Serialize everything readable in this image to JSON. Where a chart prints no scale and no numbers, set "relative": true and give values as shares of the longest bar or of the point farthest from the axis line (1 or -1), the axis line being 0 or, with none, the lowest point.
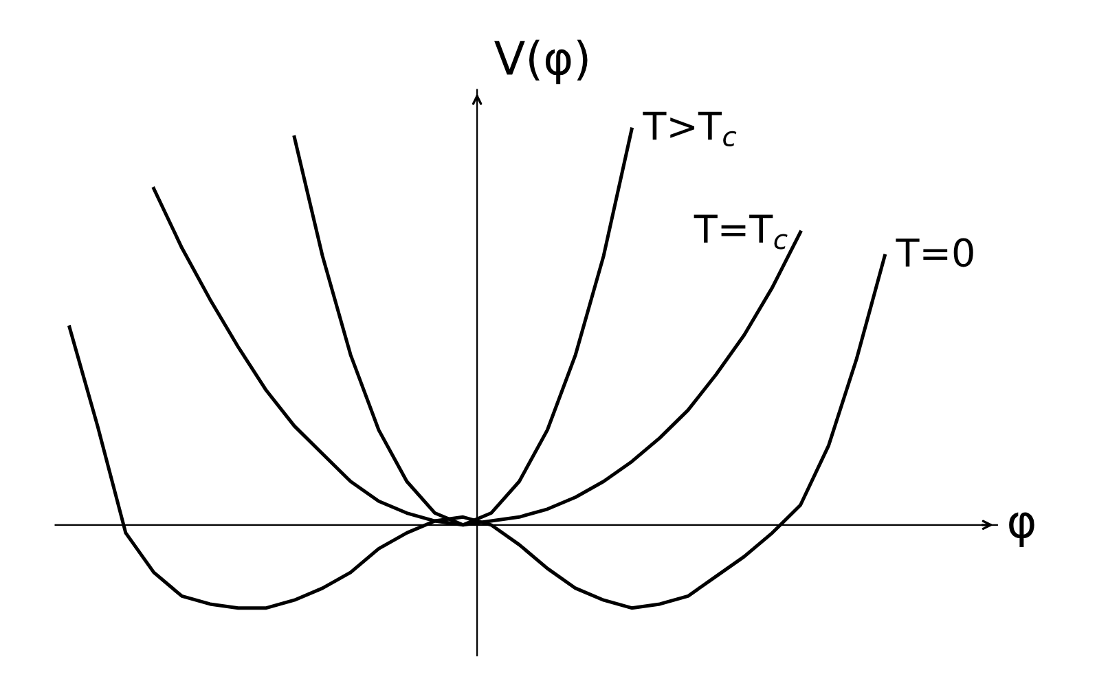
{
  "chart_data": {
    "type": "line",
    "relative": true,
    "xlabel": "φ",
    "ylabel": "V(φ)",
    "categories": [
      null,
      null,
      null,
      null,
      null,
      null,
      null,
      null,
      null,
      null,
      null,
      null,
      null,
      null,
      null,
      null,
      null,
      null,
      null,
      null,
      null,
      null,
      null,
      null,
      null,
      null,
      null,
      null,
      null,
      null
    ],
    "series": [
      {
        "name": "T>T$_{c}$",
        "color": "#000000",
        "values": [
          null,
          null,
          null,
          null,
          null,
          null,
          null,
          null,
          0.98,
          0.68,
          0.43,
          0.24,
          0.11,
          0.03,
          0,
          0.03,
          0.11,
          0.24,
          0.43,
          0.68,
          1.0,
          null,
          null,
          null,
          null,
          null,
          null,
          null,
          null,
          null
        ]
      },
      {
        "name": "T=T$_{c}$",
        "color": "#000000",
        "values": [
          null,
          null,
          null,
          0.85,
          0.7,
          0.57,
          0.45,
          0.34,
          0.25,
          0.18,
          0.11,
          0.06,
          0.03,
          0.01,
          0,
          0.01,
          0.02,
          0.04,
          0.07,
          0.11,
          0.16,
          0.22,
          0.29,
          0.38,
          0.48,
          0.6,
          0.74,
          null,
          null,
          null
        ]
      },
      {
        "name": "T=0",
        "color": "#000000",
        "values": [
          0.5,
          0.25,
          -0.02,
          -0.12,
          -0.18,
          -0.2,
          -0.21,
          -0.21,
          -0.19,
          -0.16,
          -0.12,
          -0.06,
          -0.02,
          0.01,
          0.02,
          0.0,
          -0.05,
          -0.11,
          -0.16,
          -0.19,
          -0.21,
          -0.2,
          -0.18,
          -0.13,
          -0.08,
          -0.02,
          0.05,
          0.2,
          0.42,
          0.68
        ]
      }
    ],
    "legend": false,
    "marker": "none",
    "line_style": "solid"
  }
}
